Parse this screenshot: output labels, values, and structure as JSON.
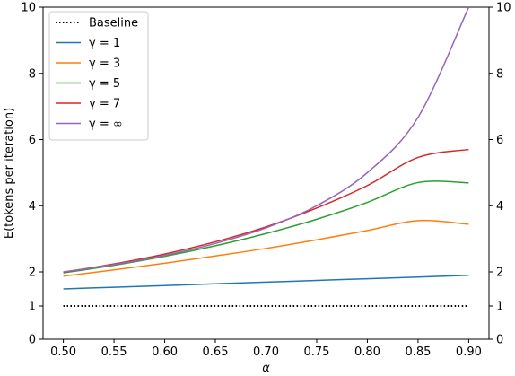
{
  "chart_data": {
    "type": "line",
    "xlabel": "α",
    "ylabel": "E(tokens per iteration)",
    "xlim": [
      0.48,
      0.92
    ],
    "ylim": [
      0,
      10
    ],
    "xticks": [
      0.5,
      0.55,
      0.6,
      0.65,
      0.7,
      0.75,
      0.8,
      0.85,
      0.9
    ],
    "xtick_labels": [
      "0.50",
      "0.55",
      "0.60",
      "0.65",
      "0.70",
      "0.75",
      "0.80",
      "0.85",
      "0.90"
    ],
    "yticks": [
      0,
      1,
      2,
      4,
      6,
      8,
      10
    ],
    "ytick_labels": [
      "0",
      "1",
      "2",
      "4",
      "6",
      "8",
      "10"
    ],
    "right_yticks": true,
    "grid": false,
    "legend_position": "top-left",
    "x": [
      0.5,
      0.55,
      0.6,
      0.65,
      0.7,
      0.75,
      0.8,
      0.85,
      0.9
    ],
    "series": [
      {
        "name": "Baseline",
        "color": "#000000",
        "dash": "dotted",
        "values": [
          1,
          1,
          1,
          1,
          1,
          1,
          1,
          1,
          1
        ]
      },
      {
        "name": "γ = 1",
        "color": "#1f77b4",
        "dash": "solid",
        "values": [
          1.5,
          1.55,
          1.6,
          1.65,
          1.7,
          1.75,
          1.8,
          1.85,
          1.9
        ]
      },
      {
        "name": "γ = 3",
        "color": "#ff7f0e",
        "dash": "solid",
        "values": [
          1.875,
          2.06,
          2.26,
          2.48,
          2.71,
          2.97,
          3.25,
          3.55,
          3.44
        ]
      },
      {
        "name": "γ = 5",
        "color": "#2ca02c",
        "dash": "solid",
        "values": [
          1.97,
          2.2,
          2.47,
          2.79,
          3.16,
          3.59,
          4.1,
          4.7,
          4.69
        ]
      },
      {
        "name": "γ = 7",
        "color": "#d62728",
        "dash": "solid",
        "values": [
          1.99,
          2.24,
          2.54,
          2.91,
          3.36,
          3.93,
          4.61,
          5.46,
          5.7
        ]
      },
      {
        "name": "γ = ∞",
        "color": "#9467bd",
        "dash": "solid",
        "values": [
          2.0,
          2.22,
          2.5,
          2.86,
          3.33,
          4.0,
          5.0,
          6.67,
          10.0
        ]
      }
    ]
  }
}
